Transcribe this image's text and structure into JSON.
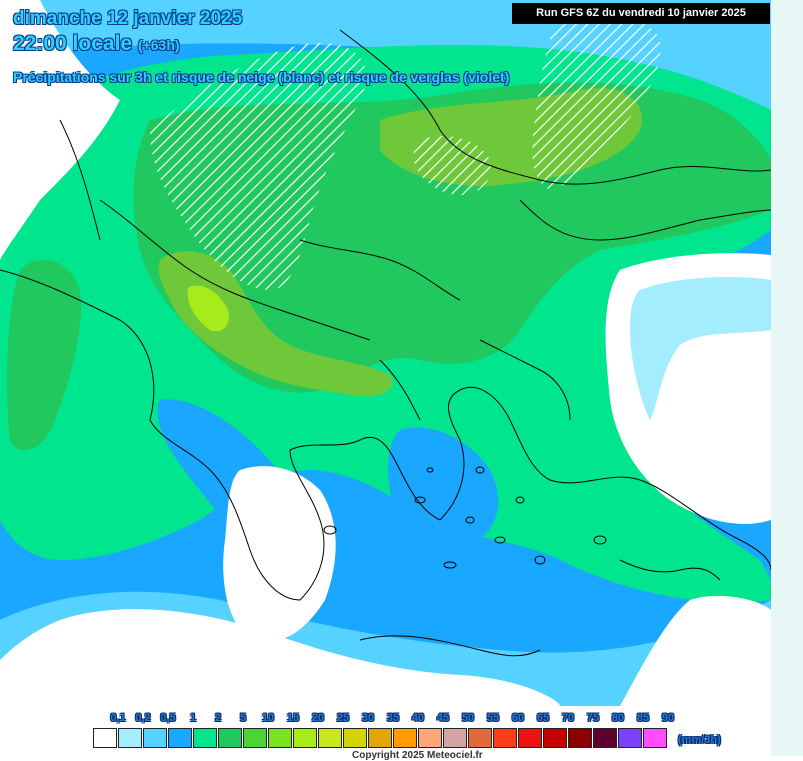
{
  "header": {
    "date": "dimanche 12 janvier 2025",
    "time": "22:00 locale",
    "offset": "(+63h)",
    "subtitle": "Précipitations sur 3h et risque de neige (blanc) et risque de verglas (violet)"
  },
  "run_banner": "Run GFS 6Z du vendredi 10 janvier 2025",
  "legend": {
    "unit": "(mm/3h)",
    "levels": [
      {
        "label": "0,1",
        "color": "#ffffff"
      },
      {
        "label": "0,2",
        "color": "#a4ecff"
      },
      {
        "label": "0,5",
        "color": "#55d2ff"
      },
      {
        "label": "1",
        "color": "#1aa7ff"
      },
      {
        "label": "2",
        "color": "#00e58e"
      },
      {
        "label": "5",
        "color": "#21c85d"
      },
      {
        "label": "10",
        "color": "#4fd13a"
      },
      {
        "label": "15",
        "color": "#79e31e"
      },
      {
        "label": "20",
        "color": "#a6eb1a"
      },
      {
        "label": "25",
        "color": "#c8e81b"
      },
      {
        "label": "30",
        "color": "#d4d400"
      },
      {
        "label": "35",
        "color": "#e0a800"
      },
      {
        "label": "40",
        "color": "#ff9d00"
      },
      {
        "label": "45",
        "color": "#ffa77a"
      },
      {
        "label": "50",
        "color": "#d4a3a3"
      },
      {
        "label": "55",
        "color": "#e06a3a"
      },
      {
        "label": "60",
        "color": "#ff3b1a"
      },
      {
        "label": "65",
        "color": "#ee1111"
      },
      {
        "label": "70",
        "color": "#c40000"
      },
      {
        "label": "75",
        "color": "#8b0000"
      },
      {
        "label": "80",
        "color": "#5e0030"
      },
      {
        "label": "85",
        "color": "#7a42ff"
      },
      {
        "label": "90",
        "color": "#ff4dff"
      }
    ]
  },
  "copyright": "Copyright 2025 Meteociel.fr",
  "colors": {
    "ocean_dry": "#ffffff",
    "light_rain": "#a4ecff",
    "rain_blue": "#1aa7ff",
    "rain_green": "#00e58e",
    "rain_darkgreen": "#21c85d",
    "snow_hatch": "#ffffff"
  }
}
